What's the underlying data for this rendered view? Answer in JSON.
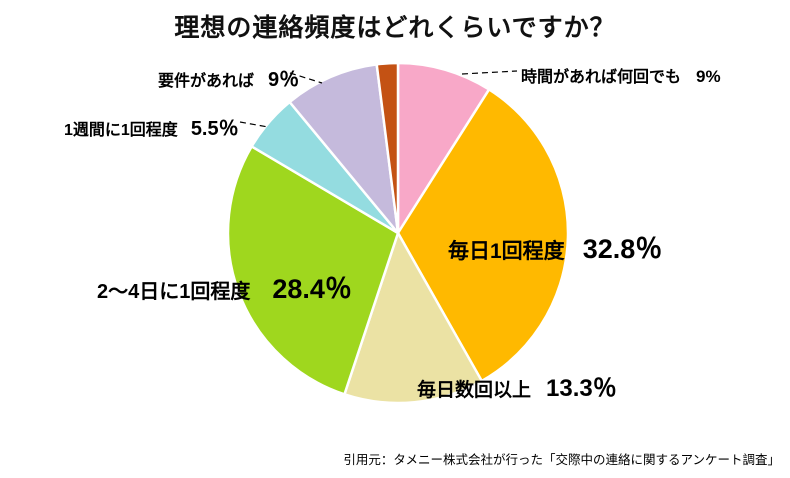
{
  "title": "理想の連絡頻度はどれくらいですか？",
  "source": "引用元：タメニー株式会社が行った「交際中の連絡に関するアンケート調査」",
  "chart_data": {
    "type": "pie",
    "title": "理想の連絡頻度はどれくらいですか？",
    "start_angle_deg": 0,
    "direction": "clockwise",
    "unit": "%",
    "total": 100,
    "slices": [
      {
        "label": "時間があれば何回でも",
        "value": 9,
        "display": "9%",
        "color": "#F8A8C8"
      },
      {
        "label": "毎日1回程度",
        "value": 32.8,
        "display": "32.8％",
        "color": "#FFB900"
      },
      {
        "label": "毎日数回以上",
        "value": 13.3,
        "display": "13.3％",
        "color": "#EBE2A4"
      },
      {
        "label": "2〜4日に1回程度",
        "value": 28.4,
        "display": "28.4％",
        "color": "#9FD71E"
      },
      {
        "label": "1週間に1回程度",
        "value": 5.5,
        "display": "5.5％",
        "color": "#94DCE0"
      },
      {
        "label": "要件があれば",
        "value": 9,
        "display": "9％",
        "color": "#C5BADC"
      },
      {
        "label": "",
        "value": 2,
        "display": "",
        "color": "#C45214"
      }
    ]
  }
}
